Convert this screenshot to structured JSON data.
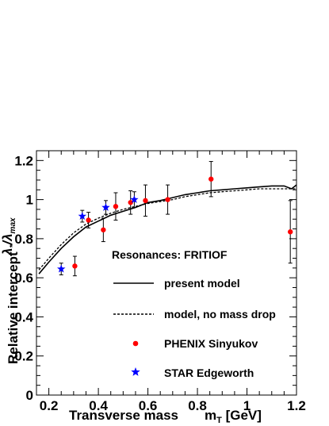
{
  "chart_data": {
    "type": "scatter",
    "xlabel": "Transverse mass",
    "xlabel_unit": "m",
    "xlabel_unit_sub": "T",
    "xlabel_unit_tail": " [GeV]",
    "ylabel": "Relative intercept",
    "ylabel2_lambda": "λ",
    "ylabel2_lambda_sub": "*",
    "ylabel2_sep": "/λ",
    "ylabel2_max_sub": "max",
    "xlim": [
      0.15,
      1.2
    ],
    "ylim": [
      0,
      1.25
    ],
    "xticks": [
      "0.2",
      "0.4",
      "0.6",
      "0.8",
      "1",
      "1.2"
    ],
    "yticks": [
      "0",
      "0.2",
      "0.4",
      "0.6",
      "0.8",
      "1",
      "1.2"
    ],
    "xtick_values": [
      0.2,
      0.4,
      0.6,
      0.8,
      1.0,
      1.2
    ],
    "ytick_values": [
      0,
      0.2,
      0.4,
      0.6,
      0.8,
      1.0,
      1.2
    ],
    "legend_heading": "Resonances: FRITIOF",
    "series": [
      {
        "name": "present model",
        "style": "solid",
        "color": "#000000",
        "points": [
          [
            0.16,
            0.62
          ],
          [
            0.2,
            0.68
          ],
          [
            0.25,
            0.75
          ],
          [
            0.3,
            0.81
          ],
          [
            0.35,
            0.86
          ],
          [
            0.4,
            0.89
          ],
          [
            0.45,
            0.92
          ],
          [
            0.5,
            0.94
          ],
          [
            0.55,
            0.96
          ],
          [
            0.6,
            0.985
          ],
          [
            0.65,
            0.995
          ],
          [
            0.7,
            1.01
          ],
          [
            0.75,
            1.025
          ],
          [
            0.8,
            1.035
          ],
          [
            0.85,
            1.045
          ],
          [
            0.9,
            1.05
          ],
          [
            0.95,
            1.055
          ],
          [
            1.0,
            1.06
          ],
          [
            1.05,
            1.065
          ],
          [
            1.1,
            1.07
          ],
          [
            1.15,
            1.07
          ],
          [
            1.18,
            1.055
          ],
          [
            1.2,
            1.075
          ]
        ]
      },
      {
        "name": "model, no mass drop",
        "style": "dashed",
        "color": "#000000",
        "points": [
          [
            0.16,
            0.64
          ],
          [
            0.2,
            0.7
          ],
          [
            0.25,
            0.77
          ],
          [
            0.3,
            0.83
          ],
          [
            0.35,
            0.875
          ],
          [
            0.4,
            0.905
          ],
          [
            0.45,
            0.93
          ],
          [
            0.5,
            0.95
          ],
          [
            0.55,
            0.965
          ],
          [
            0.6,
            0.98
          ],
          [
            0.65,
            0.99
          ],
          [
            0.7,
            1.0
          ],
          [
            0.75,
            1.015
          ],
          [
            0.8,
            1.025
          ],
          [
            0.85,
            1.035
          ],
          [
            0.9,
            1.04
          ],
          [
            0.95,
            1.045
          ],
          [
            1.0,
            1.05
          ],
          [
            1.05,
            1.055
          ],
          [
            1.1,
            1.055
          ],
          [
            1.15,
            1.055
          ],
          [
            1.2,
            1.055
          ]
        ]
      },
      {
        "name": "PHENIX Sinyukov",
        "marker": "circle",
        "color": "#ff0000",
        "points": [
          {
            "x": 0.305,
            "y": 0.66,
            "err": 0.05
          },
          {
            "x": 0.36,
            "y": 0.895,
            "err": 0.04
          },
          {
            "x": 0.42,
            "y": 0.845,
            "err": 0.06
          },
          {
            "x": 0.47,
            "y": 0.965,
            "err": 0.07
          },
          {
            "x": 0.53,
            "y": 0.985,
            "err": 0.06
          },
          {
            "x": 0.59,
            "y": 0.995,
            "err": 0.08
          },
          {
            "x": 0.68,
            "y": 1.0,
            "err": 0.075
          },
          {
            "x": 0.855,
            "y": 1.105,
            "err": 0.09
          },
          {
            "x": 1.175,
            "y": 0.835,
            "err": 0.16
          }
        ]
      },
      {
        "name": "STAR Edgeworth",
        "marker": "star",
        "color": "#0000ff",
        "points": [
          {
            "x": 0.25,
            "y": 0.645,
            "err": 0.03
          },
          {
            "x": 0.335,
            "y": 0.915,
            "err": 0.03
          },
          {
            "x": 0.43,
            "y": 0.96,
            "err": 0.035
          },
          {
            "x": 0.545,
            "y": 1.0,
            "err": 0.04
          }
        ]
      }
    ]
  }
}
